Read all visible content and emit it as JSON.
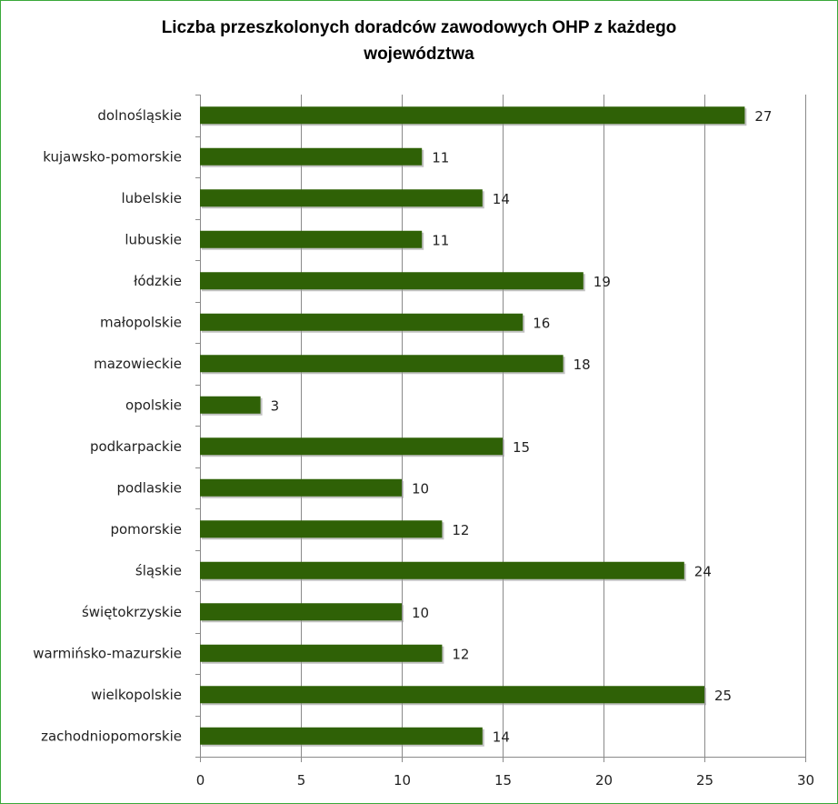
{
  "chart_data": {
    "type": "bar",
    "orientation": "horizontal",
    "title_lines": [
      "Liczba przeszkolonych doradców zawodowych OHP z każdego",
      "województwa"
    ],
    "title": "Liczba przeszkolonych doradców zawodowych OHP z każdego województwa",
    "categories": [
      "dolnośląskie",
      "kujawsko-pomorskie",
      "lubelskie",
      "lubuskie",
      "łódzkie",
      "małopolskie",
      "mazowieckie",
      "opolskie",
      "podkarpackie",
      "podlaskie",
      "pomorskie",
      "śląskie",
      "świętokrzyskie",
      "warmińsko-mazurskie",
      "wielkopolskie",
      "zachodniopomorskie"
    ],
    "values": [
      27,
      11,
      14,
      11,
      19,
      16,
      18,
      3,
      15,
      10,
      12,
      24,
      10,
      12,
      25,
      14
    ],
    "xlim": [
      0,
      30
    ],
    "xticks": [
      0,
      5,
      10,
      15,
      20,
      25,
      30
    ],
    "xlabel": "",
    "ylabel": "",
    "grid": true,
    "legend": "none",
    "bar_color": "#2f6106",
    "grid_color": "#8a8a8a"
  }
}
